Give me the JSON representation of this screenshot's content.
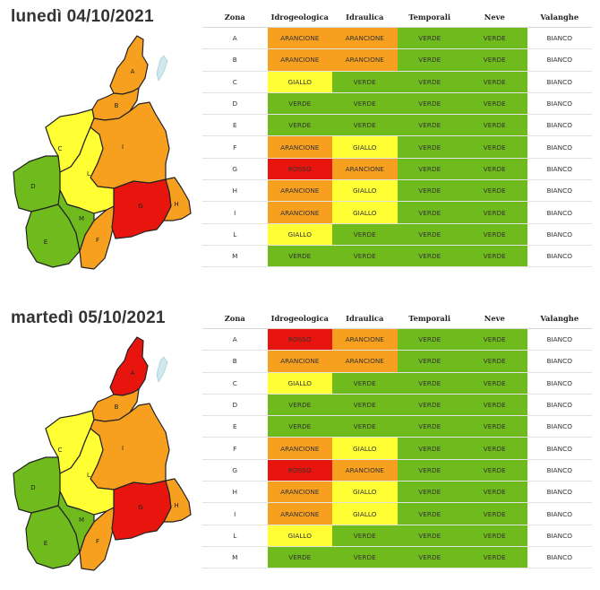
{
  "columns": [
    "Zona",
    "Idrogeologica",
    "Idraulica",
    "Temporali",
    "Neve",
    "Valanghe"
  ],
  "colors": {
    "VERDE": "#6fba1c",
    "ARANCIONE": "#f7a020",
    "GIALLO": "#ffff33",
    "ROSSO": "#e8150f",
    "BIANCO": "#ffffff"
  },
  "days": [
    {
      "title": "lunedì 04/10/2021",
      "rows": [
        {
          "zona": "A",
          "idrogeologica": "ARANCIONE",
          "idraulica": "ARANCIONE",
          "temporali": "VERDE",
          "neve": "VERDE",
          "valanghe": "BIANCO"
        },
        {
          "zona": "B",
          "idrogeologica": "ARANCIONE",
          "idraulica": "ARANCIONE",
          "temporali": "VERDE",
          "neve": "VERDE",
          "valanghe": "BIANCO"
        },
        {
          "zona": "C",
          "idrogeologica": "GIALLO",
          "idraulica": "VERDE",
          "temporali": "VERDE",
          "neve": "VERDE",
          "valanghe": "BIANCO"
        },
        {
          "zona": "D",
          "idrogeologica": "VERDE",
          "idraulica": "VERDE",
          "temporali": "VERDE",
          "neve": "VERDE",
          "valanghe": "BIANCO"
        },
        {
          "zona": "E",
          "idrogeologica": "VERDE",
          "idraulica": "VERDE",
          "temporali": "VERDE",
          "neve": "VERDE",
          "valanghe": "BIANCO"
        },
        {
          "zona": "F",
          "idrogeologica": "ARANCIONE",
          "idraulica": "GIALLO",
          "temporali": "VERDE",
          "neve": "VERDE",
          "valanghe": "BIANCO"
        },
        {
          "zona": "G",
          "idrogeologica": "ROSSO",
          "idraulica": "ARANCIONE",
          "temporali": "VERDE",
          "neve": "VERDE",
          "valanghe": "BIANCO"
        },
        {
          "zona": "H",
          "idrogeologica": "ARANCIONE",
          "idraulica": "GIALLO",
          "temporali": "VERDE",
          "neve": "VERDE",
          "valanghe": "BIANCO"
        },
        {
          "zona": "I",
          "idrogeologica": "ARANCIONE",
          "idraulica": "GIALLO",
          "temporali": "VERDE",
          "neve": "VERDE",
          "valanghe": "BIANCO"
        },
        {
          "zona": "L",
          "idrogeologica": "GIALLO",
          "idraulica": "VERDE",
          "temporali": "VERDE",
          "neve": "VERDE",
          "valanghe": "BIANCO"
        },
        {
          "zona": "M",
          "idrogeologica": "VERDE",
          "idraulica": "VERDE",
          "temporali": "VERDE",
          "neve": "VERDE",
          "valanghe": "BIANCO"
        }
      ]
    },
    {
      "title": "martedì 05/10/2021",
      "rows": [
        {
          "zona": "A",
          "idrogeologica": "ROSSO",
          "idraulica": "ARANCIONE",
          "temporali": "VERDE",
          "neve": "VERDE",
          "valanghe": "BIANCO"
        },
        {
          "zona": "B",
          "idrogeologica": "ARANCIONE",
          "idraulica": "ARANCIONE",
          "temporali": "VERDE",
          "neve": "VERDE",
          "valanghe": "BIANCO"
        },
        {
          "zona": "C",
          "idrogeologica": "GIALLO",
          "idraulica": "VERDE",
          "temporali": "VERDE",
          "neve": "VERDE",
          "valanghe": "BIANCO"
        },
        {
          "zona": "D",
          "idrogeologica": "VERDE",
          "idraulica": "VERDE",
          "temporali": "VERDE",
          "neve": "VERDE",
          "valanghe": "BIANCO"
        },
        {
          "zona": "E",
          "idrogeologica": "VERDE",
          "idraulica": "VERDE",
          "temporali": "VERDE",
          "neve": "VERDE",
          "valanghe": "BIANCO"
        },
        {
          "zona": "F",
          "idrogeologica": "ARANCIONE",
          "idraulica": "GIALLO",
          "temporali": "VERDE",
          "neve": "VERDE",
          "valanghe": "BIANCO"
        },
        {
          "zona": "G",
          "idrogeologica": "ROSSO",
          "idraulica": "ARANCIONE",
          "temporali": "VERDE",
          "neve": "VERDE",
          "valanghe": "BIANCO"
        },
        {
          "zona": "H",
          "idrogeologica": "ARANCIONE",
          "idraulica": "GIALLO",
          "temporali": "VERDE",
          "neve": "VERDE",
          "valanghe": "BIANCO"
        },
        {
          "zona": "I",
          "idrogeologica": "ARANCIONE",
          "idraulica": "GIALLO",
          "temporali": "VERDE",
          "neve": "VERDE",
          "valanghe": "BIANCO"
        },
        {
          "zona": "L",
          "idrogeologica": "GIALLO",
          "idraulica": "VERDE",
          "temporali": "VERDE",
          "neve": "VERDE",
          "valanghe": "BIANCO"
        },
        {
          "zona": "M",
          "idrogeologica": "VERDE",
          "idraulica": "VERDE",
          "temporali": "VERDE",
          "neve": "VERDE",
          "valanghe": "BIANCO"
        }
      ]
    }
  ]
}
